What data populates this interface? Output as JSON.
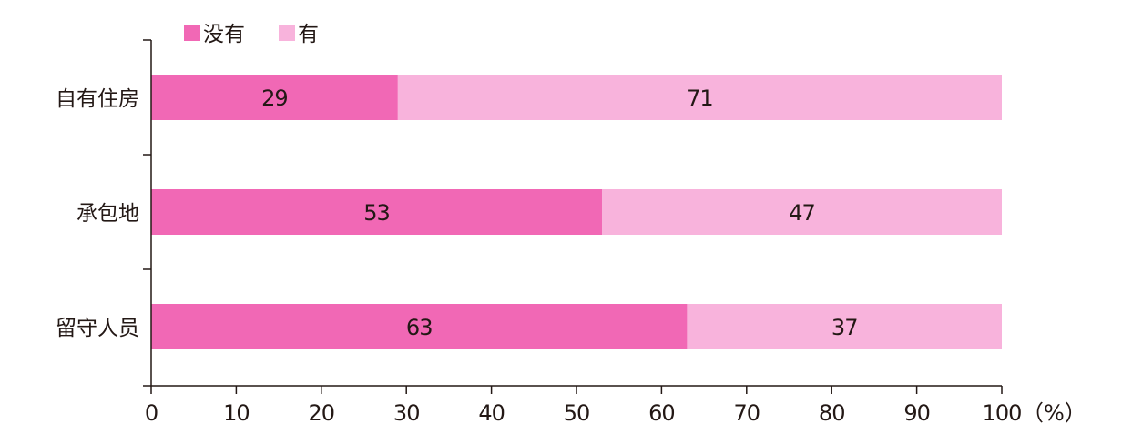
{
  "chart_data": {
    "type": "bar",
    "orientation": "horizontal",
    "stacked": true,
    "categories": [
      "自有住房",
      "承包地",
      "留守人员"
    ],
    "series": [
      {
        "name": "没有",
        "values": [
          29,
          53,
          63
        ],
        "color": "#f168b5"
      },
      {
        "name": "有",
        "values": [
          71,
          47,
          37
        ],
        "color": "#f8b3dc"
      }
    ],
    "xticks": [
      0,
      10,
      20,
      30,
      40,
      50,
      60,
      70,
      80,
      90,
      100
    ],
    "xunit": "（%）",
    "xlim": [
      0,
      100
    ],
    "legend": "top-left",
    "grid": false
  }
}
